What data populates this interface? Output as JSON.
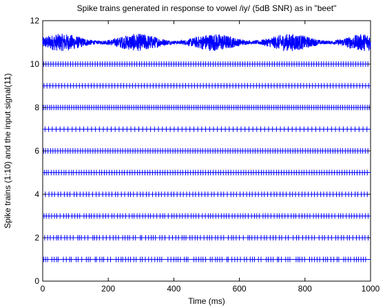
{
  "chart_data": {
    "type": "line",
    "title": "Spike trains generated in response to vowel /iy/ (5dB SNR) as in \"beet\"",
    "xlabel": "Time (ms)",
    "ylabel": "Spike trains (1:10) and the input signal(11)",
    "xlim": [
      0,
      1000
    ],
    "ylim": [
      0,
      12
    ],
    "xticks": [
      0,
      200,
      400,
      600,
      800,
      1000
    ],
    "yticks": [
      0,
      2,
      4,
      6,
      8,
      10,
      12
    ],
    "grid": false,
    "line_color": "#0000ff",
    "input_signal": {
      "level": 11,
      "amplitude": 0.4
    },
    "spike_trains": [
      {
        "train": 1,
        "spike_times": [
          3,
          9,
          15,
          28,
          35,
          42,
          47,
          63,
          72,
          82,
          87,
          102,
          108,
          119,
          133,
          139,
          145,
          160,
          164,
          174,
          181,
          186,
          198,
          207,
          224,
          231,
          239,
          244,
          253,
          261,
          268,
          278,
          285,
          298,
          304,
          313,
          323,
          332,
          342,
          350,
          357,
          363,
          382,
          391,
          400,
          407,
          413,
          420,
          432,
          438,
          443,
          461,
          468,
          476,
          483,
          489,
          497,
          511,
          517,
          527,
          533,
          540,
          547,
          562,
          566,
          577,
          586,
          594,
          603,
          615,
          622,
          633,
          640,
          646,
          658,
          666,
          682,
          688,
          696,
          703,
          716,
          720,
          728,
          741,
          748,
          754,
          773,
          779,
          784,
          791,
          799,
          814,
          821,
          829,
          837,
          845,
          856,
          863,
          869,
          879,
          888,
          898,
          903,
          918,
          924,
          932,
          939,
          950,
          957,
          963,
          971,
          978,
          985
        ]
      },
      {
        "train": 2,
        "spike_times": [
          6,
          15,
          23,
          33,
          42,
          47,
          56,
          67,
          74,
          84,
          93,
          107,
          112,
          118,
          128,
          138,
          153,
          158,
          165,
          173,
          184,
          194,
          205,
          215,
          223,
          231,
          244,
          251,
          259,
          265,
          276,
          283,
          298,
          302,
          314,
          323,
          331,
          337,
          344,
          357,
          364,
          373,
          386,
          396,
          406,
          414,
          425,
          431,
          437,
          449,
          456,
          465,
          472,
          481,
          492,
          502,
          509,
          516,
          527,
          534,
          544,
          552,
          566,
          576,
          582,
          590,
          600,
          612,
          626,
          631,
          638,
          647,
          655,
          666,
          676,
          683,
          694,
          703,
          711,
          722,
          729,
          741,
          749,
          764,
          774,
          781,
          793,
          803,
          811,
          821,
          829,
          843,
          853,
          860,
          871,
          881,
          894,
          901,
          911,
          918,
          929,
          936,
          946,
          957,
          966,
          975,
          983,
          993
        ]
      },
      {
        "train": 3,
        "spike_times": [
          4,
          11,
          19,
          27,
          36,
          43,
          53,
          64,
          72,
          79,
          89,
          98,
          106,
          113,
          126,
          133,
          142,
          148,
          157,
          166,
          174,
          184,
          192,
          200,
          211,
          218,
          228,
          236,
          244,
          253,
          264,
          273,
          279,
          288,
          296,
          305,
          313,
          322,
          329,
          338,
          348,
          358,
          366,
          372,
          383,
          394,
          401,
          409,
          418,
          426,
          435,
          443,
          453,
          460,
          467,
          476,
          487,
          496,
          505,
          512,
          519,
          528,
          536,
          545,
          553,
          560,
          568,
          578,
          586,
          595,
          603,
          611,
          618,
          627,
          637,
          646,
          653,
          661,
          672,
          679,
          687,
          696,
          706,
          715,
          722,
          730,
          739,
          748,
          758,
          766,
          772,
          782,
          791,
          799,
          807,
          815,
          826,
          834,
          841,
          850,
          858,
          866,
          873,
          882,
          891,
          902,
          909,
          916,
          926,
          935,
          942,
          950,
          958,
          967,
          975,
          984,
          993
        ]
      },
      {
        "train": 4,
        "spike_times": [
          8,
          19,
          28,
          36,
          47,
          55,
          66,
          75,
          83,
          96,
          104,
          114,
          124,
          133,
          141,
          152,
          163,
          172,
          183,
          193,
          202,
          211,
          222,
          229,
          240,
          250,
          261,
          268,
          277,
          288,
          298,
          306,
          316,
          324,
          335,
          345,
          354,
          362,
          372,
          382,
          392,
          400,
          410,
          420,
          429,
          439,
          448,
          458,
          466,
          476,
          485,
          495,
          504,
          515,
          523,
          534,
          544,
          552,
          563,
          574,
          582,
          591,
          602,
          612,
          622,
          631,
          639,
          649,
          658,
          668,
          676,
          686,
          696,
          706,
          714,
          724,
          733,
          743,
          754,
          762,
          771,
          781,
          791,
          800,
          810,
          820,
          829,
          838,
          848,
          857,
          867,
          876,
          886,
          896,
          905,
          913,
          924,
          933,
          942,
          953,
          961,
          972,
          981,
          990
        ]
      },
      {
        "train": 5,
        "spike_times": [
          5,
          11,
          17,
          26,
          34,
          41,
          49,
          57,
          65,
          71,
          80,
          88,
          94,
          103,
          111,
          118,
          126,
          133,
          141,
          148,
          157,
          164,
          173,
          180,
          188,
          195,
          203,
          211,
          219,
          226,
          234,
          242,
          249,
          258,
          266,
          273,
          281,
          289,
          296,
          304,
          312,
          320,
          327,
          335,
          343,
          350,
          358,
          366,
          373,
          381,
          389,
          397,
          404,
          412,
          420,
          427,
          436,
          443,
          451,
          459,
          466,
          474,
          482,
          489,
          497,
          505,
          512,
          520,
          528,
          536,
          543,
          551,
          559,
          566,
          574,
          582,
          590,
          597,
          605,
          613,
          620,
          628,
          636,
          643,
          651,
          659,
          667,
          674,
          682,
          690,
          697,
          705,
          713,
          720,
          728,
          736,
          744,
          751,
          759,
          767,
          774,
          782,
          790,
          797,
          805,
          813,
          821,
          828,
          836,
          844,
          851,
          859,
          867,
          874,
          882,
          890,
          898,
          905,
          913,
          921,
          928,
          936,
          944,
          951,
          959,
          967,
          975,
          982,
          990
        ]
      },
      {
        "train": 6,
        "spike_times": [
          3,
          9,
          16,
          24,
          31,
          38,
          46,
          54,
          61,
          69,
          77,
          84,
          92,
          99,
          107,
          115,
          122,
          130,
          138,
          145,
          153,
          160,
          168,
          176,
          183,
          191,
          199,
          206,
          214,
          221,
          229,
          237,
          244,
          252,
          260,
          267,
          275,
          282,
          290,
          298,
          305,
          313,
          321,
          328,
          336,
          343,
          351,
          359,
          366,
          374,
          382,
          389,
          397,
          404,
          412,
          420,
          427,
          435,
          443,
          450,
          458,
          465,
          473,
          481,
          488,
          496,
          504,
          511,
          519,
          526,
          534,
          542,
          549,
          557,
          565,
          572,
          580,
          587,
          595,
          603,
          610,
          618,
          626,
          633,
          641,
          648,
          656,
          664,
          671,
          679,
          687,
          694,
          702,
          709,
          717,
          725,
          732,
          740,
          748,
          755,
          763,
          770,
          778,
          786,
          793,
          801,
          809,
          816,
          824,
          831,
          839,
          847,
          854,
          862,
          870,
          877,
          885,
          892,
          900,
          908,
          915,
          923,
          931,
          938,
          946,
          953,
          961,
          969,
          976,
          984,
          992
        ]
      },
      {
        "train": 7,
        "spike_times": [
          7,
          18,
          29,
          41,
          53,
          65,
          77,
          90,
          101,
          113,
          125,
          137,
          149,
          161,
          173,
          185,
          197,
          209,
          221,
          233,
          245,
          257,
          269,
          281,
          293,
          305,
          317,
          329,
          341,
          353,
          365,
          377,
          389,
          401,
          413,
          425,
          437,
          449,
          461,
          473,
          485,
          497,
          509,
          521,
          533,
          545,
          557,
          569,
          581,
          593,
          605,
          617,
          629,
          641,
          653,
          665,
          677,
          689,
          701,
          713,
          725,
          737,
          749,
          761,
          773,
          785,
          797,
          809,
          821,
          833,
          845,
          857,
          869,
          881,
          893,
          905,
          917,
          929,
          941,
          953,
          965,
          977,
          989
        ]
      },
      {
        "train": 8,
        "spike_times": [
          2,
          8,
          14,
          21,
          27,
          34,
          41,
          47,
          54,
          61,
          68,
          75,
          81,
          88,
          95,
          102,
          108,
          115,
          122,
          129,
          136,
          142,
          149,
          156,
          163,
          169,
          176,
          183,
          190,
          197,
          203,
          210,
          217,
          224,
          230,
          237,
          244,
          251,
          258,
          264,
          271,
          278,
          285,
          291,
          298,
          305,
          312,
          319,
          325,
          332,
          339,
          346,
          352,
          359,
          366,
          373,
          380,
          386,
          393,
          400,
          407,
          413,
          420,
          427,
          434,
          441,
          447,
          454,
          461,
          468,
          474,
          481,
          488,
          495,
          502,
          508,
          515,
          522,
          529,
          535,
          542,
          549,
          556,
          563,
          569,
          576,
          583,
          590,
          596,
          603,
          610,
          617,
          624,
          630,
          637,
          644,
          651,
          657,
          664,
          671,
          678,
          685,
          691,
          698,
          705,
          712,
          718,
          725,
          732,
          739,
          746,
          752,
          759,
          766,
          773,
          779,
          786,
          793,
          800,
          807,
          813,
          820,
          827,
          834,
          840,
          847,
          854,
          861,
          868,
          874,
          881,
          888,
          895,
          901,
          908,
          915,
          922,
          929,
          935,
          942,
          949,
          956,
          962,
          969,
          976,
          983,
          990,
          996
        ]
      },
      {
        "train": 9,
        "spike_times": [
          4,
          13,
          22,
          31,
          40,
          49,
          58,
          67,
          76,
          85,
          94,
          103,
          112,
          121,
          130,
          139,
          148,
          157,
          166,
          175,
          184,
          193,
          202,
          211,
          220,
          229,
          238,
          247,
          256,
          265,
          274,
          283,
          292,
          301,
          310,
          319,
          328,
          337,
          346,
          355,
          364,
          373,
          382,
          391,
          400,
          409,
          418,
          427,
          436,
          445,
          454,
          463,
          472,
          481,
          490,
          499,
          508,
          517,
          526,
          535,
          544,
          553,
          562,
          571,
          580,
          589,
          598,
          607,
          616,
          625,
          634,
          643,
          652,
          661,
          670,
          679,
          688,
          697,
          706,
          715,
          724,
          733,
          742,
          751,
          760,
          769,
          778,
          787,
          796,
          805,
          814,
          823,
          832,
          841,
          850,
          859,
          868,
          877,
          886,
          895,
          904,
          913,
          922,
          931,
          940,
          949,
          958,
          967,
          976,
          985,
          994
        ]
      },
      {
        "train": 10,
        "spike_times": [
          3,
          10,
          17,
          25,
          32,
          40,
          47,
          55,
          62,
          70,
          77,
          85,
          92,
          100,
          107,
          115,
          122,
          130,
          137,
          145,
          152,
          160,
          167,
          175,
          182,
          190,
          197,
          205,
          212,
          220,
          227,
          235,
          242,
          250,
          257,
          265,
          272,
          280,
          287,
          295,
          302,
          310,
          317,
          325,
          332,
          340,
          347,
          355,
          362,
          370,
          377,
          385,
          392,
          400,
          407,
          415,
          422,
          430,
          437,
          445,
          452,
          460,
          467,
          475,
          482,
          490,
          497,
          505,
          512,
          520,
          527,
          535,
          542,
          550,
          557,
          565,
          572,
          580,
          587,
          595,
          602,
          610,
          617,
          625,
          632,
          640,
          647,
          655,
          662,
          670,
          677,
          685,
          692,
          700,
          707,
          715,
          722,
          730,
          737,
          745,
          752,
          760,
          767,
          775,
          782,
          790,
          797,
          805,
          812,
          820,
          827,
          835,
          842,
          850,
          857,
          865,
          872,
          880,
          887,
          895,
          902,
          910,
          917,
          925,
          932,
          940,
          947,
          955,
          962,
          970,
          977,
          985,
          992
        ]
      }
    ]
  }
}
